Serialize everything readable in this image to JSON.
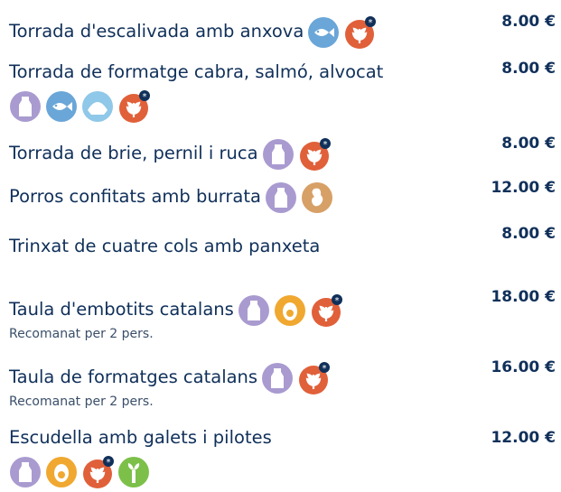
{
  "items": [
    {
      "name": "Torrada d'escalivada amb anxova",
      "price": "8.00 €"
    },
    {
      "name": "Torrada de formatge cabra, salmó, alvocat",
      "price": "8.00 €"
    },
    {
      "name": "Torrada de brie, pernil i ruca",
      "price": "8.00 €"
    },
    {
      "name": "Porros confitats amb burrata",
      "price": "12.00 €"
    },
    {
      "name": "Trinxat de cuatre cols amb panxeta",
      "price": "8.00 €"
    },
    {
      "name": "Taula d'embotits catalans",
      "note": "Recomanat per 2 pers.",
      "price": "18.00 €"
    },
    {
      "name": "Taula de formatges catalans",
      "note": "Recomanat per 2 pers.",
      "price": "16.00 €"
    },
    {
      "name": "Escudella amb galets i pilotes",
      "price": "12.00 €"
    }
  ]
}
